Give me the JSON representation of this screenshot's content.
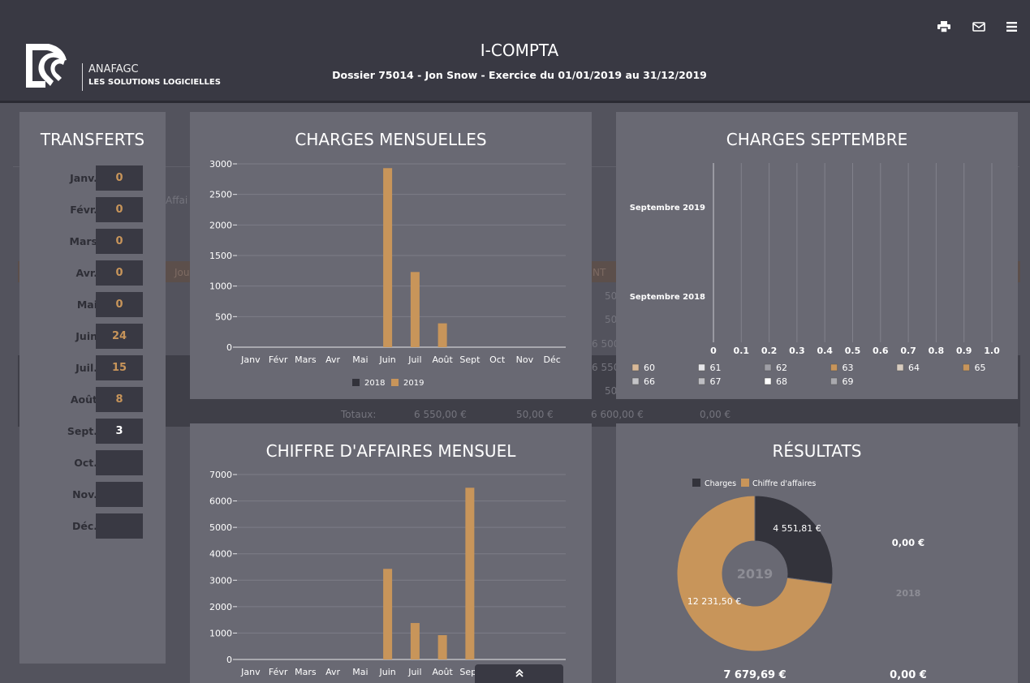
{
  "header": {
    "brand_name": "ANAFAGC",
    "brand_tagline": "LES SOLUTIONS LOGICIELLES",
    "title": "I-COMPTA",
    "subtitle": "Dossier 75014 - Jon Snow - Exercice du 01/01/2019 au 31/12/2019",
    "icons": [
      "print-icon",
      "mail-icon",
      "menu-icon"
    ]
  },
  "background": {
    "affai_text": "Affai",
    "jou_text": "Jou",
    "nt_text": "NT",
    "right_values": [
      "50",
      "50",
      "6 500",
      "6 550",
      "50"
    ],
    "totals_label": "Totaux:",
    "totals": [
      "6 550,00 €",
      "50,00 €",
      "6 600,00 €",
      "0,00 €"
    ]
  },
  "transferts": {
    "title": "TRANSFERTS",
    "rows": [
      {
        "month": "Janv.",
        "value": "0"
      },
      {
        "month": "Févr.",
        "value": "0"
      },
      {
        "month": "Mars",
        "value": "0"
      },
      {
        "month": "Avr.",
        "value": "0"
      },
      {
        "month": "Mai",
        "value": "0"
      },
      {
        "month": "Juin",
        "value": "24"
      },
      {
        "month": "Juil.",
        "value": "15"
      },
      {
        "month": "Août",
        "value": "8"
      },
      {
        "month": "Sept.",
        "value": "3"
      },
      {
        "month": "Oct.",
        "value": ""
      },
      {
        "month": "Nov.",
        "value": ""
      },
      {
        "month": "Déc.",
        "value": ""
      }
    ]
  },
  "colors": {
    "accent": "#c8955a",
    "dark": "#393943",
    "panel": "#696973"
  },
  "chart_data": [
    {
      "id": "charges-mensuelles",
      "type": "bar",
      "title": "CHARGES MENSUELLES",
      "categories": [
        "Janv",
        "Févr",
        "Mars",
        "Avr",
        "Mai",
        "Juin",
        "Juil",
        "Août",
        "Sept",
        "Oct",
        "Nov",
        "Déc"
      ],
      "series": [
        {
          "name": "2018",
          "color": "#33333b",
          "values": [
            0,
            0,
            0,
            0,
            0,
            0,
            0,
            0,
            0,
            0,
            0,
            0
          ]
        },
        {
          "name": "2019",
          "color": "#c8955a",
          "values": [
            0,
            0,
            0,
            0,
            0,
            2930,
            1230,
            390,
            0,
            0,
            0,
            0
          ]
        }
      ],
      "ylim": [
        0,
        3000
      ],
      "yticks": [
        0,
        500,
        1000,
        1500,
        2000,
        2500,
        3000
      ],
      "legend": "bottom",
      "grid": true
    },
    {
      "id": "chiffre-affaires-mensuel",
      "type": "bar",
      "title": "CHIFFRE D'AFFAIRES MENSUEL",
      "categories": [
        "Janv",
        "Févr",
        "Mars",
        "Avr",
        "Mai",
        "Juin",
        "Juil",
        "Août",
        "Sept"
      ],
      "series": [
        {
          "name": "2019",
          "color": "#c8955a",
          "values": [
            0,
            0,
            0,
            0,
            0,
            3430,
            1380,
            920,
            6500
          ]
        }
      ],
      "ylim": [
        0,
        7000
      ],
      "yticks": [
        0,
        1000,
        2000,
        3000,
        4000,
        5000,
        6000,
        7000
      ],
      "grid": true
    },
    {
      "id": "charges-septembre",
      "type": "bar",
      "orientation": "horizontal",
      "title": "CHARGES SEPTEMBRE",
      "categories": [
        "Septembre 2019",
        "Septembre 2018"
      ],
      "xticks": [
        "0",
        "0.1",
        "0.2",
        "0.3",
        "0.4",
        "0.5",
        "0.6",
        "0.7",
        "0.8",
        "0.9",
        "1.0"
      ],
      "xlim": [
        0,
        1
      ],
      "legend": [
        {
          "name": "60",
          "color": "#d9b998"
        },
        {
          "name": "61",
          "color": "#e6e6ea"
        },
        {
          "name": "62",
          "color": "#9f9fa6"
        },
        {
          "name": "63",
          "color": "#c8955a"
        },
        {
          "name": "64",
          "color": "#d8ccc0"
        },
        {
          "name": "65",
          "color": "#c8955a"
        },
        {
          "name": "66",
          "color": "#c4c4c8"
        },
        {
          "name": "67",
          "color": "#bdbdc2"
        },
        {
          "name": "68",
          "color": "#ffffff"
        },
        {
          "name": "69",
          "color": "#a9a9ae"
        }
      ],
      "grid": true
    },
    {
      "id": "resultats",
      "type": "pie",
      "title": "RÉSULTATS",
      "center_label": "2019",
      "slices": [
        {
          "name": "Charges",
          "value": 4551.81,
          "label": "4 551,81 €",
          "color": "#33333b"
        },
        {
          "name": "Chiffre d'affaires",
          "value": 12231.5,
          "label": "12 231,50 €",
          "color": "#c8955a"
        }
      ],
      "side_value_top": "0,00 €",
      "side_year": "2018",
      "total_2019": "7 679,69 €",
      "total_2018": "0,00 €"
    }
  ]
}
